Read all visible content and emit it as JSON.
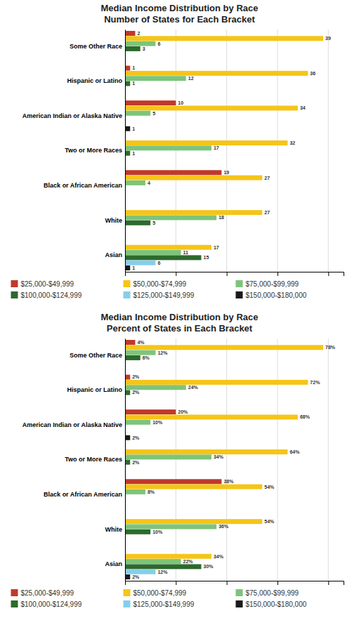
{
  "chart_data": [
    {
      "type": "bar",
      "orientation": "horizontal",
      "title": "Median Income Distribution by Race",
      "subtitle": "Number of States for Each Bracket",
      "categories": [
        "Some Other Race",
        "Hispanic or Latino",
        "American Indian or Alaska Native",
        "Two or More Races",
        "Black or African American",
        "White",
        "Asian"
      ],
      "series": [
        {
          "name": "$25,000-$49,999",
          "color": "#C0392B",
          "values": [
            2,
            1,
            10,
            0,
            19,
            0,
            0
          ],
          "value_labels": [
            "2",
            "1",
            "10",
            null,
            "19",
            null,
            null
          ]
        },
        {
          "name": "$50,000-$74,999",
          "color": "#F5C518",
          "values": [
            39,
            36,
            34,
            32,
            27,
            27,
            17
          ],
          "value_labels": [
            "39",
            "36",
            "34",
            "32",
            "27",
            "27",
            "17"
          ]
        },
        {
          "name": "$75,000-$99,999",
          "color": "#7DC47A",
          "values": [
            6,
            12,
            5,
            17,
            4,
            18,
            11
          ],
          "value_labels": [
            "6",
            "12",
            "5",
            "17",
            "4",
            "18",
            "11"
          ]
        },
        {
          "name": "$100,000-$124,999",
          "color": "#2D6A2D",
          "values": [
            3,
            1,
            0,
            1,
            0,
            5,
            15
          ],
          "value_labels": [
            "3",
            "1",
            null,
            "1",
            null,
            "5",
            "15"
          ]
        },
        {
          "name": "$125,000-$149,999",
          "color": "#87CEEB",
          "values": [
            0,
            0,
            0,
            0,
            0,
            0,
            6
          ],
          "value_labels": [
            null,
            null,
            null,
            null,
            null,
            null,
            "6"
          ]
        },
        {
          "name": "$150,000-$180,000",
          "color": "#1A1A1A",
          "values": [
            0,
            0,
            1,
            0,
            0,
            0,
            1
          ],
          "value_labels": [
            null,
            null,
            "1",
            null,
            null,
            null,
            "1"
          ]
        }
      ],
      "xlim": [
        0,
        43
      ],
      "xticks": [
        0,
        10,
        20,
        30,
        40
      ],
      "grid": true,
      "tick_labels": "y",
      "data_labels": true,
      "legend": "bottom"
    },
    {
      "type": "bar",
      "orientation": "horizontal",
      "title": "Median Income Distribution by Race",
      "subtitle": "Percent of States in Each Bracket",
      "categories": [
        "Some Other Race",
        "Hispanic or Latino",
        "American Indian or Alaska Native",
        "Two or More Races",
        "Black or African American",
        "White",
        "Asian"
      ],
      "series": [
        {
          "name": "$25,000-$49,999",
          "color": "#C0392B",
          "values": [
            4,
            2,
            20,
            0,
            38,
            0,
            0
          ],
          "value_labels": [
            "4%",
            "2%",
            "20%",
            null,
            "38%",
            null,
            null
          ]
        },
        {
          "name": "$50,000-$74,999",
          "color": "#F5C518",
          "values": [
            78,
            72,
            68,
            64,
            54,
            54,
            34
          ],
          "value_labels": [
            "78%",
            "72%",
            "68%",
            "64%",
            "54%",
            "54%",
            "34%"
          ]
        },
        {
          "name": "$75,000-$99,999",
          "color": "#7DC47A",
          "values": [
            12,
            24,
            10,
            34,
            8,
            36,
            22
          ],
          "value_labels": [
            "12%",
            "24%",
            "10%",
            "34%",
            "8%",
            "36%",
            "22%"
          ]
        },
        {
          "name": "$100,000-$124,999",
          "color": "#2D6A2D",
          "values": [
            6,
            2,
            0,
            2,
            0,
            10,
            30
          ],
          "value_labels": [
            "6%",
            "2%",
            null,
            "2%",
            null,
            "10%",
            "30%"
          ]
        },
        {
          "name": "$125,000-$149,999",
          "color": "#87CEEB",
          "values": [
            0,
            0,
            0,
            0,
            0,
            0,
            12
          ],
          "value_labels": [
            null,
            null,
            null,
            null,
            null,
            null,
            "12%"
          ]
        },
        {
          "name": "$150,000-$180,000",
          "color": "#1A1A1A",
          "values": [
            0,
            0,
            2,
            0,
            0,
            0,
            2
          ],
          "value_labels": [
            null,
            null,
            "2%",
            null,
            null,
            null,
            "2%"
          ]
        }
      ],
      "xlim": [
        0,
        86
      ],
      "xticks": [
        0,
        20,
        40,
        60,
        80
      ],
      "grid": true,
      "tick_labels": "y",
      "data_labels": true,
      "legend": "bottom"
    }
  ]
}
